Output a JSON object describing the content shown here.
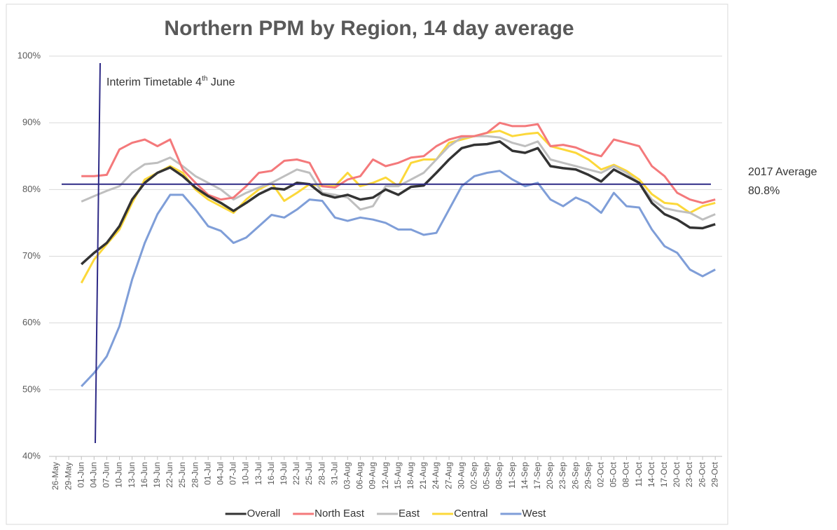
{
  "chart_data": {
    "type": "line",
    "title": "Northern PPM by Region, 14 day average",
    "categories": [
      "26-May",
      "29-May",
      "01-Jun",
      "04-Jun",
      "07-Jun",
      "10-Jun",
      "13-Jun",
      "16-Jun",
      "19-Jun",
      "22-Jun",
      "25-Jun",
      "28-Jun",
      "01-Jul",
      "04-Jul",
      "07-Jul",
      "10-Jul",
      "13-Jul",
      "16-Jul",
      "19-Jul",
      "22-Jul",
      "25-Jul",
      "28-Jul",
      "31-Jul",
      "03-Aug",
      "06-Aug",
      "09-Aug",
      "12-Aug",
      "15-Aug",
      "18-Aug",
      "21-Aug",
      "24-Aug",
      "27-Aug",
      "30-Aug",
      "02-Sep",
      "05-Sep",
      "08-Sep",
      "11-Sep",
      "14-Sep",
      "17-Sep",
      "20-Sep",
      "23-Sep",
      "26-Sep",
      "29-Sep",
      "02-Oct",
      "05-Oct",
      "08-Oct",
      "11-Oct",
      "14-Oct",
      "17-Oct",
      "20-Oct",
      "23-Oct",
      "26-Oct",
      "29-Oct"
    ],
    "series": [
      {
        "name": "Overall",
        "color": "#333333",
        "values": [
          null,
          null,
          68.8,
          70.5,
          72.0,
          74.5,
          78.5,
          81.0,
          82.5,
          83.3,
          82.0,
          80.3,
          79.0,
          78.0,
          76.8,
          78.0,
          79.3,
          80.2,
          80.0,
          81.0,
          80.8,
          79.3,
          78.8,
          79.2,
          78.5,
          78.8,
          80.0,
          79.2,
          80.4,
          80.6,
          82.5,
          84.5,
          86.2,
          86.7,
          86.8,
          87.2,
          85.8,
          85.5,
          86.2,
          83.5,
          83.2,
          83.0,
          82.2,
          81.2,
          83.0,
          82.0,
          81.0,
          78.0,
          76.3,
          75.5,
          74.3,
          74.2,
          74.8
        ]
      },
      {
        "name": "North East",
        "color": "#f4797b",
        "values": [
          null,
          null,
          82.0,
          82.0,
          82.2,
          86.0,
          87.0,
          87.5,
          86.5,
          87.5,
          83.0,
          81.0,
          79.2,
          78.5,
          78.8,
          80.5,
          82.5,
          82.8,
          84.3,
          84.5,
          84.0,
          80.5,
          80.3,
          81.5,
          82.0,
          84.5,
          83.5,
          84.0,
          84.8,
          85.0,
          86.5,
          87.5,
          88.0,
          88.0,
          88.5,
          90.0,
          89.5,
          89.5,
          89.8,
          86.5,
          86.7,
          86.3,
          85.5,
          85.0,
          87.5,
          87.0,
          86.5,
          83.5,
          82.0,
          79.5,
          78.5,
          78.0,
          78.5
        ]
      },
      {
        "name": "East",
        "color": "#bfbfbf",
        "values": [
          null,
          null,
          78.2,
          79.0,
          79.8,
          80.5,
          82.5,
          83.8,
          84.0,
          84.8,
          83.5,
          82.0,
          81.0,
          80.0,
          78.5,
          79.5,
          80.3,
          81.0,
          82.0,
          83.0,
          82.5,
          79.5,
          79.2,
          78.8,
          77.0,
          77.5,
          80.5,
          80.5,
          81.5,
          82.5,
          84.5,
          86.5,
          87.8,
          88.0,
          88.0,
          87.8,
          87.0,
          86.5,
          87.2,
          84.5,
          84.0,
          83.5,
          83.0,
          82.5,
          83.5,
          82.5,
          81.0,
          78.5,
          77.2,
          76.8,
          76.5,
          75.5,
          76.3
        ]
      },
      {
        "name": "Central",
        "color": "#fcd83a",
        "values": [
          null,
          null,
          66.0,
          69.5,
          71.8,
          74.0,
          78.0,
          81.5,
          82.5,
          83.5,
          82.5,
          80.0,
          78.5,
          77.5,
          76.5,
          78.5,
          80.0,
          81.0,
          78.3,
          79.5,
          80.8,
          80.5,
          80.5,
          82.5,
          80.5,
          81.0,
          81.8,
          80.5,
          84.0,
          84.5,
          84.5,
          87.0,
          87.5,
          88.0,
          88.5,
          88.8,
          88.0,
          88.3,
          88.5,
          86.5,
          86.0,
          85.5,
          84.5,
          83.0,
          83.7,
          82.8,
          81.5,
          79.3,
          78.0,
          77.8,
          76.5,
          77.5,
          78.0
        ]
      },
      {
        "name": "West",
        "color": "#7f9ed8",
        "values": [
          null,
          null,
          50.5,
          52.5,
          55.0,
          59.5,
          66.5,
          72.0,
          76.3,
          79.2,
          79.2,
          77.0,
          74.5,
          73.8,
          72.0,
          72.8,
          74.5,
          76.2,
          75.8,
          77.0,
          78.5,
          78.3,
          75.8,
          75.3,
          75.8,
          75.5,
          75.0,
          74.0,
          74.0,
          73.2,
          73.5,
          77.0,
          80.5,
          82.0,
          82.5,
          82.8,
          81.5,
          80.5,
          81.0,
          78.5,
          77.5,
          78.8,
          78.0,
          76.5,
          79.5,
          77.5,
          77.3,
          74.0,
          71.5,
          70.5,
          68.0,
          67.0,
          68.0
        ]
      }
    ],
    "ylim": [
      40,
      100
    ],
    "yticks": [
      {
        "value": 40,
        "label": "40%"
      },
      {
        "value": 50,
        "label": "50%"
      },
      {
        "value": 60,
        "label": "60%"
      },
      {
        "value": 70,
        "label": "70%"
      },
      {
        "value": 80,
        "label": "80%"
      },
      {
        "value": 90,
        "label": "90%"
      },
      {
        "value": 100,
        "label": "100%"
      }
    ],
    "grid": true,
    "legend": "bottom",
    "reference_line": {
      "label": "2017 Average",
      "value": 80.8,
      "value_label": "80.8%",
      "color": "#2e2a86"
    },
    "event_line": {
      "text": "Interim Timetable 4",
      "superscript": "th",
      "text_end": " June",
      "color": "#2e2a86"
    }
  }
}
